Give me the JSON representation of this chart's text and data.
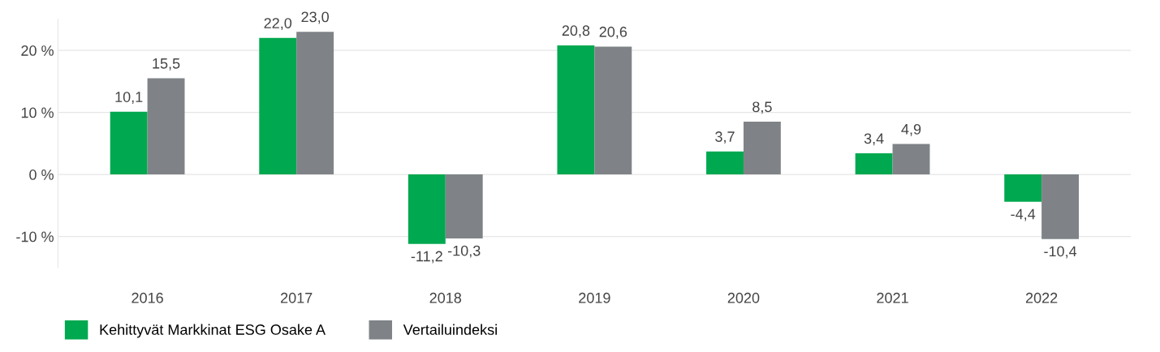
{
  "chart_data": {
    "type": "bar",
    "categories": [
      "2016",
      "2017",
      "2018",
      "2019",
      "2020",
      "2021",
      "2022"
    ],
    "series": [
      {
        "name": "Kehittyvät Markkinat ESG Osake A",
        "color": "#00a84f",
        "values": [
          10.1,
          22.0,
          -11.2,
          20.8,
          3.7,
          3.4,
          -4.4
        ],
        "value_labels": [
          "10,1",
          "22,0",
          "-11,2",
          "20,8",
          "3,7",
          "3,4",
          "-4,4"
        ]
      },
      {
        "name": "Vertailuindeksi",
        "color": "#7f8387",
        "values": [
          15.5,
          23.0,
          -10.3,
          20.6,
          8.5,
          4.9,
          -10.4
        ],
        "value_labels": [
          "15,5",
          "23,0",
          "-10,3",
          "20,6",
          "8,5",
          "4,9",
          "-10,4"
        ]
      }
    ],
    "ylim": [
      -15,
      25
    ],
    "yticks": [
      {
        "value": -10,
        "label": "-10 %"
      },
      {
        "value": 0,
        "label": "0 %"
      },
      {
        "value": 10,
        "label": "10 %"
      },
      {
        "value": 20,
        "label": "20 %"
      }
    ],
    "grid": "y",
    "legend": "bottom left"
  }
}
